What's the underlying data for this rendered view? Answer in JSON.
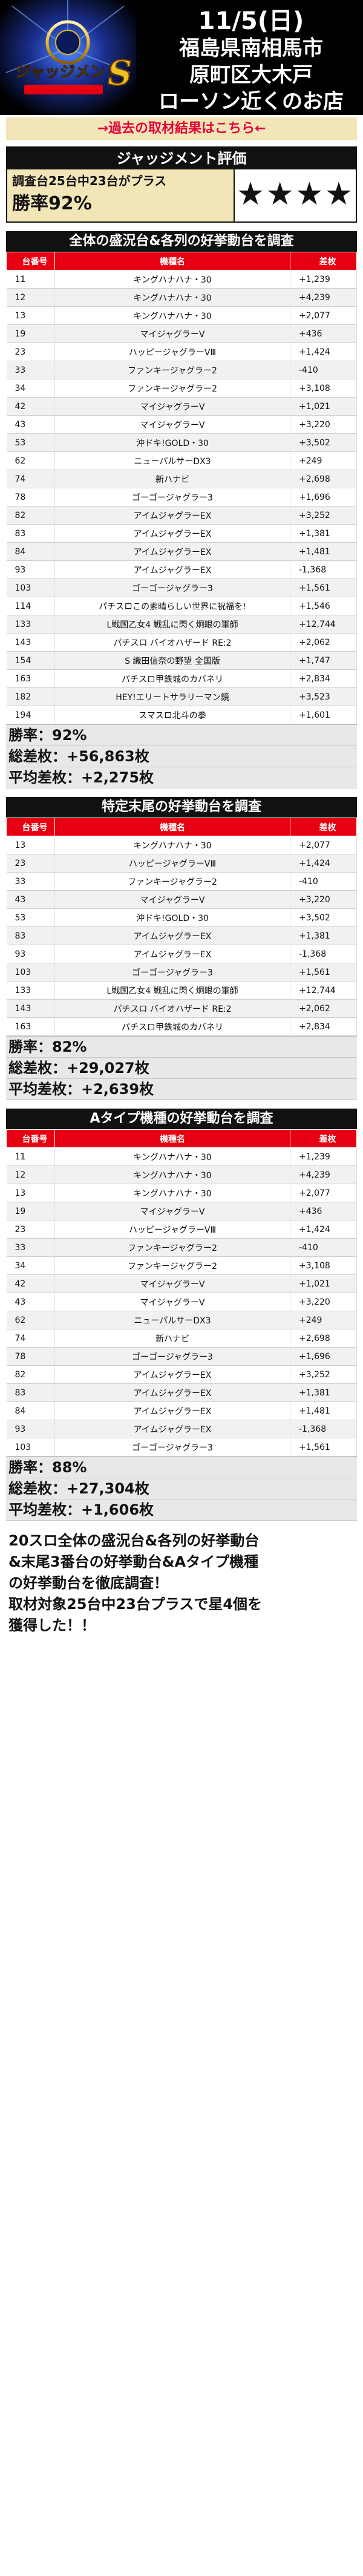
{
  "header": {
    "logo_text": "ジャッジメント",
    "logo_badge": "S",
    "date": "11/5(日)",
    "location_lines": [
      "福島県南相馬市",
      "原町区大木戸",
      "ローソン近くのお店"
    ]
  },
  "past_link": "→過去の取材結果はこちら←",
  "evaluation": {
    "title": "ジャッジメント評価",
    "note": "調査台25台中23台がプラス",
    "rate": "勝率92%",
    "stars": "★★★★"
  },
  "table_headers": {
    "no": "台番号",
    "name": "機種名",
    "diff": "差枚"
  },
  "sections": [
    {
      "title": "全体の盛況台&各列の好挙動台を調査",
      "rows": [
        {
          "no": "11",
          "name": "キングハナハナ・30",
          "diff": "+1,239"
        },
        {
          "no": "12",
          "name": "キングハナハナ・30",
          "diff": "+4,239"
        },
        {
          "no": "13",
          "name": "キングハナハナ・30",
          "diff": "+2,077"
        },
        {
          "no": "19",
          "name": "マイジャグラーV",
          "diff": "+436"
        },
        {
          "no": "23",
          "name": "ハッピージャグラーVⅢ",
          "diff": "+1,424"
        },
        {
          "no": "33",
          "name": "ファンキージャグラー2",
          "diff": "-410"
        },
        {
          "no": "34",
          "name": "ファンキージャグラー2",
          "diff": "+3,108"
        },
        {
          "no": "42",
          "name": "マイジャグラーV",
          "diff": "+1,021"
        },
        {
          "no": "43",
          "name": "マイジャグラーV",
          "diff": "+3,220"
        },
        {
          "no": "53",
          "name": "沖ドキ!GOLD・30",
          "diff": "+3,502"
        },
        {
          "no": "62",
          "name": "ニューパルサーDX3",
          "diff": "+249"
        },
        {
          "no": "74",
          "name": "新ハナビ",
          "diff": "+2,698"
        },
        {
          "no": "78",
          "name": "ゴーゴージャグラー3",
          "diff": "+1,696"
        },
        {
          "no": "82",
          "name": "アイムジャグラーEX",
          "diff": "+3,252"
        },
        {
          "no": "83",
          "name": "アイムジャグラーEX",
          "diff": "+1,381"
        },
        {
          "no": "84",
          "name": "アイムジャグラーEX",
          "diff": "+1,481"
        },
        {
          "no": "93",
          "name": "アイムジャグラーEX",
          "diff": "-1,368"
        },
        {
          "no": "103",
          "name": "ゴーゴージャグラー3",
          "diff": "+1,561"
        },
        {
          "no": "114",
          "name": "パチスロこの素晴らしい世界に祝福を!",
          "diff": "+1,546"
        },
        {
          "no": "133",
          "name": "L戦国乙女4 戦乱に閃く炯眼の軍師",
          "diff": "+12,744"
        },
        {
          "no": "143",
          "name": "パチスロ バイオハザード RE:2",
          "diff": "+2,062"
        },
        {
          "no": "154",
          "name": "S 織田信奈の野望 全国版",
          "diff": "+1,747"
        },
        {
          "no": "163",
          "name": "パチスロ甲鉄城のカバネリ",
          "diff": "+2,834"
        },
        {
          "no": "182",
          "name": "HEY!エリートサラリーマン鏡",
          "diff": "+3,523"
        },
        {
          "no": "194",
          "name": "スマスロ北斗の拳",
          "diff": "+1,601"
        }
      ],
      "win_rate": "勝率：92%",
      "total": "総差枚：+56,863枚",
      "average": "平均差枚：+2,275枚"
    },
    {
      "title": "特定末尾の好挙動台を調査",
      "rows": [
        {
          "no": "13",
          "name": "キングハナハナ・30",
          "diff": "+2,077"
        },
        {
          "no": "23",
          "name": "ハッピージャグラーVⅢ",
          "diff": "+1,424"
        },
        {
          "no": "33",
          "name": "ファンキージャグラー2",
          "diff": "-410"
        },
        {
          "no": "43",
          "name": "マイジャグラーV",
          "diff": "+3,220"
        },
        {
          "no": "53",
          "name": "沖ドキ!GOLD・30",
          "diff": "+3,502"
        },
        {
          "no": "83",
          "name": "アイムジャグラーEX",
          "diff": "+1,381"
        },
        {
          "no": "93",
          "name": "アイムジャグラーEX",
          "diff": "-1,368"
        },
        {
          "no": "103",
          "name": "ゴーゴージャグラー3",
          "diff": "+1,561"
        },
        {
          "no": "133",
          "name": "L戦国乙女4 戦乱に閃く炯眼の軍師",
          "diff": "+12,744"
        },
        {
          "no": "143",
          "name": "パチスロ バイオハザード RE:2",
          "diff": "+2,062"
        },
        {
          "no": "163",
          "name": "パチスロ甲鉄城のカバネリ",
          "diff": "+2,834"
        }
      ],
      "win_rate": "勝率：82%",
      "total": "総差枚：+29,027枚",
      "average": "平均差枚：+2,639枚"
    },
    {
      "title": "Aタイプ機種の好挙動台を調査",
      "rows": [
        {
          "no": "11",
          "name": "キングハナハナ・30",
          "diff": "+1,239"
        },
        {
          "no": "12",
          "name": "キングハナハナ・30",
          "diff": "+4,239"
        },
        {
          "no": "13",
          "name": "キングハナハナ・30",
          "diff": "+2,077"
        },
        {
          "no": "19",
          "name": "マイジャグラーV",
          "diff": "+436"
        },
        {
          "no": "23",
          "name": "ハッピージャグラーVⅢ",
          "diff": "+1,424"
        },
        {
          "no": "33",
          "name": "ファンキージャグラー2",
          "diff": "-410"
        },
        {
          "no": "34",
          "name": "ファンキージャグラー2",
          "diff": "+3,108"
        },
        {
          "no": "42",
          "name": "マイジャグラーV",
          "diff": "+1,021"
        },
        {
          "no": "43",
          "name": "マイジャグラーV",
          "diff": "+3,220"
        },
        {
          "no": "62",
          "name": "ニューパルサーDX3",
          "diff": "+249"
        },
        {
          "no": "74",
          "name": "新ハナビ",
          "diff": "+2,698"
        },
        {
          "no": "78",
          "name": "ゴーゴージャグラー3",
          "diff": "+1,696"
        },
        {
          "no": "82",
          "name": "アイムジャグラーEX",
          "diff": "+3,252"
        },
        {
          "no": "83",
          "name": "アイムジャグラーEX",
          "diff": "+1,381"
        },
        {
          "no": "84",
          "name": "アイムジャグラーEX",
          "diff": "+1,481"
        },
        {
          "no": "93",
          "name": "アイムジャグラーEX",
          "diff": "-1,368"
        },
        {
          "no": "103",
          "name": "ゴーゴージャグラー3",
          "diff": "+1,561"
        }
      ],
      "win_rate": "勝率：88%",
      "total": "総差枚：+27,304枚",
      "average": "平均差枚：+1,606枚"
    }
  ],
  "footer_lines": [
    "20スロ全体の盛況台&各列の好挙動台",
    "&末尾3番台の好挙動台&Aタイプ機種",
    "の好挙動台を徹底調査！",
    "取材対象25台中23台プラスで星4個を",
    "獲得した！！"
  ],
  "colors": {
    "accent_red": "#e60012",
    "banner_beige": "#f2e6b8",
    "dark": "#111111"
  }
}
